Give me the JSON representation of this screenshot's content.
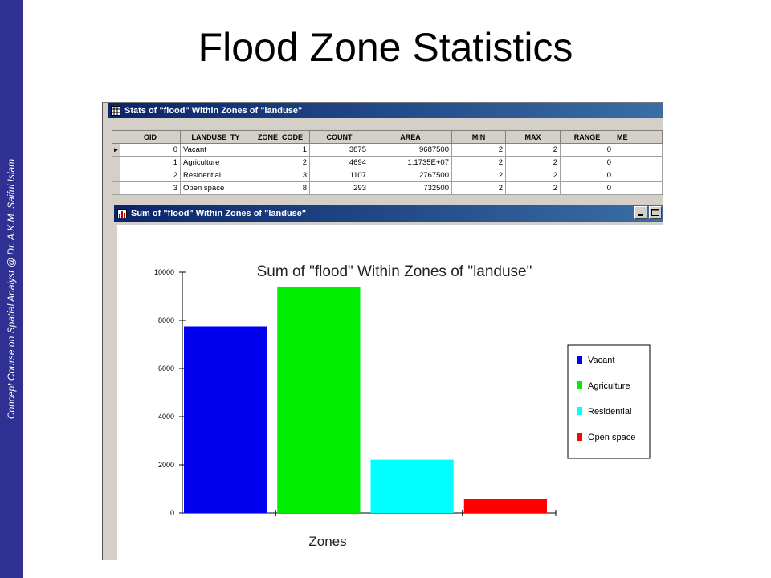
{
  "slide": {
    "title": "Flood Zone Statistics",
    "side_caption": "Concept Course on Spatial Analyst @ Dr. A.K.M. Saiful Islam"
  },
  "stats_window": {
    "title": "Stats of \"flood\" Within Zones of \"landuse\"",
    "columns": [
      "OID",
      "LANDUSE_TY",
      "ZONE_CODE",
      "COUNT",
      "AREA",
      "MIN",
      "MAX",
      "RANGE",
      "ME"
    ],
    "rows": [
      [
        "0",
        "Vacant",
        "1",
        "3875",
        "9687500",
        "2",
        "2",
        "0",
        ""
      ],
      [
        "1",
        "Agriculture",
        "2",
        "4694",
        "1.1735E+07",
        "2",
        "2",
        "0",
        ""
      ],
      [
        "2",
        "Residential",
        "3",
        "1107",
        "2767500",
        "2",
        "2",
        "0",
        ""
      ],
      [
        "3",
        "Open space",
        "8",
        "293",
        "732500",
        "2",
        "2",
        "0",
        ""
      ]
    ],
    "current_row_marker": "►"
  },
  "chart_window": {
    "title": "Sum of \"flood\" Within Zones of \"landuse\""
  },
  "chart_data": {
    "type": "bar",
    "title": "Sum of \"flood\" Within Zones of \"landuse\"",
    "xlabel": "Zones",
    "ylabel": "",
    "ylim": [
      0,
      10000
    ],
    "yticks": [
      0,
      2000,
      4000,
      6000,
      8000,
      10000
    ],
    "categories": [
      "Vacant",
      "Agriculture",
      "Residential",
      "Open space"
    ],
    "values": [
      7750,
      9388,
      2214,
      586
    ],
    "colors": [
      "#0000ee",
      "#00ee00",
      "#00ffff",
      "#ff0000"
    ],
    "legend_position": "right"
  }
}
